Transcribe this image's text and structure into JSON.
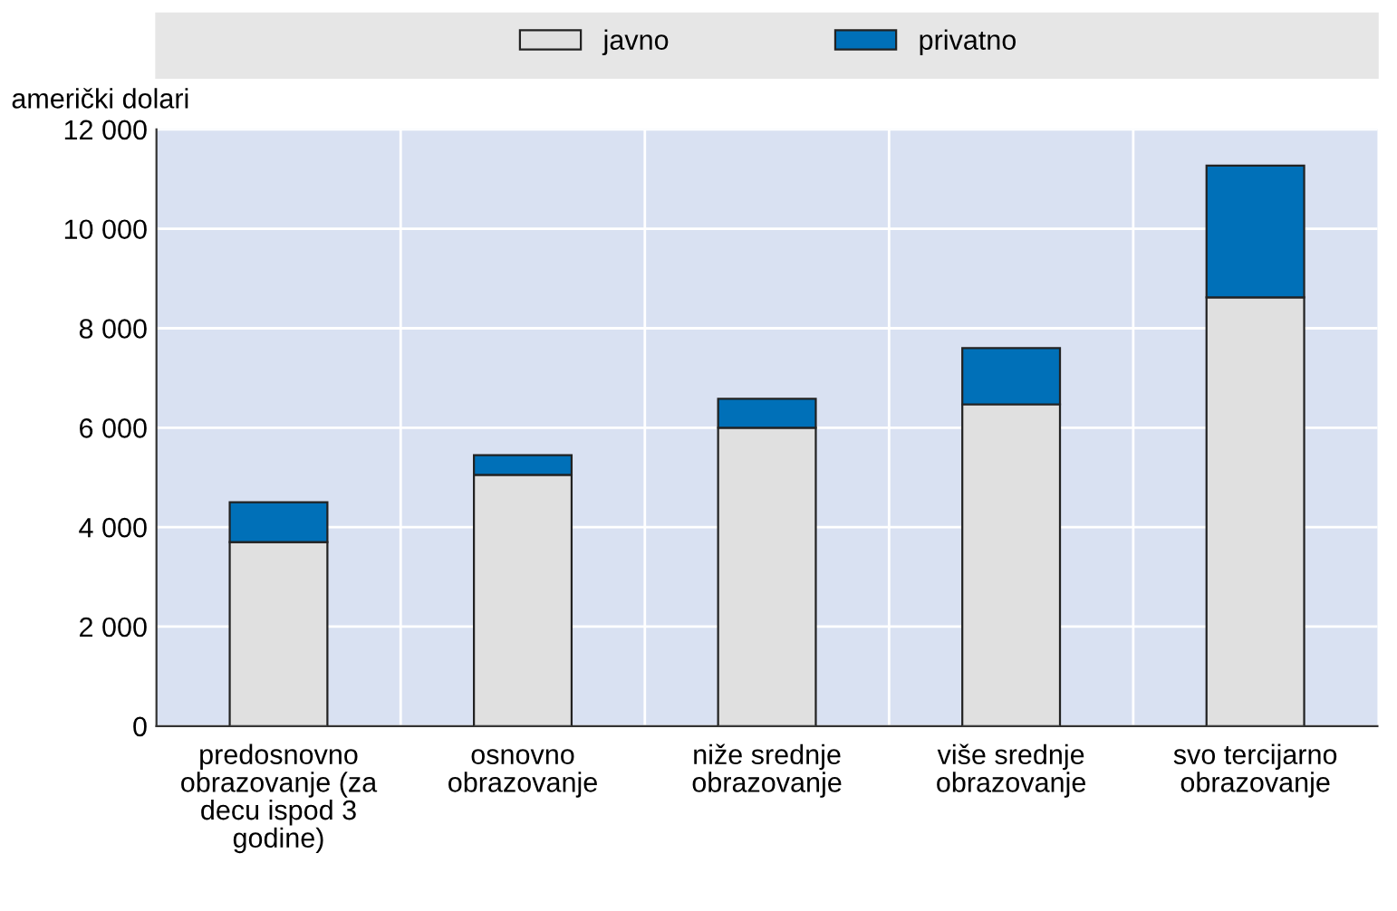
{
  "chart_data": {
    "type": "bar",
    "stacked": true,
    "ylabel": "američki dolari",
    "categories": [
      "predosnovno obrazovanje (za decu ispod 3 godine)",
      "osnovno obrazovanje",
      "niže srednje obrazovanje",
      "više srednje obrazovanje",
      "svo tercijarno obrazovanje"
    ],
    "series": [
      {
        "name": "javno",
        "color": "#e0e0e0",
        "values": [
          3700,
          5050,
          6000,
          6470,
          8620
        ]
      },
      {
        "name": "privatno",
        "color": "#0070b8",
        "values": [
          800,
          400,
          580,
          1130,
          2650
        ]
      }
    ],
    "ylim": [
      0,
      12000
    ],
    "yticks": [
      0,
      {
        "value": 2000,
        "label": "2 000"
      },
      {
        "value": 4000,
        "label": "4 000"
      },
      {
        "value": 6000,
        "label": "6 000"
      },
      {
        "value": 8000,
        "label": "8 000"
      },
      {
        "value": 10000,
        "label": "10 000"
      },
      {
        "value": 12000,
        "label": "12 000"
      }
    ],
    "grid": true,
    "legend": "top"
  }
}
